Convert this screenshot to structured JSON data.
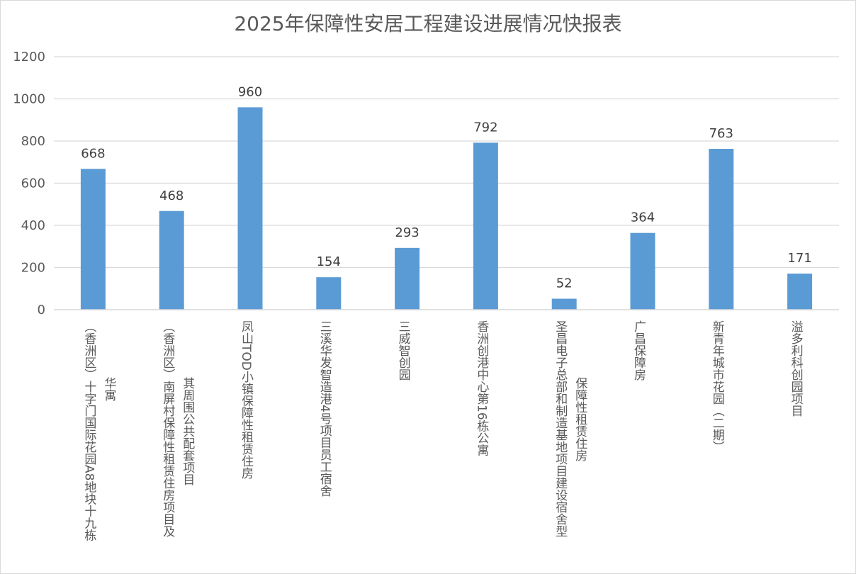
{
  "chart_data": {
    "type": "bar",
    "title": "2025年保障性安居工程建设进展情况快报表",
    "ylim": [
      0,
      1200
    ],
    "yticks": [
      0,
      200,
      400,
      600,
      800,
      1000,
      1200
    ],
    "grid": true,
    "legend": "none",
    "bar_color": "#5b9bd5",
    "categories": [
      "（香洲区）十字门国际花园A8地块十九栋华寓",
      "（香洲区）南屏村保障性租赁住房项目及其周围公共配套项目",
      "凤山TOD小镇保障性租赁住房",
      "三溪华发智造港4号项目员工宿舍",
      "三威智创园",
      "香洲创港中心第16栋公寓",
      "圣昌电子总部和制造基地项目建设宿舍型保障性租赁住房",
      "广昌保障房",
      "新青年城市花园（二期）",
      "溢多利科创园项目"
    ],
    "category_lines": [
      [
        "（香洲区）十字门国际花园A8地块十九栋",
        "华寓"
      ],
      [
        "（香洲区）南屏村保障性租赁住房项目及",
        "其周围公共配套项目"
      ],
      [
        "凤山TOD小镇保障性租赁住房"
      ],
      [
        "三溪华发智造港4号项目员工宿舍"
      ],
      [
        "三威智创园"
      ],
      [
        "香洲创港中心第16栋公寓"
      ],
      [
        "圣昌电子总部和制造基地项目建设宿舍型",
        "保障性租赁住房"
      ],
      [
        "广昌保障房"
      ],
      [
        "新青年城市花园（二期）"
      ],
      [
        "溢多利科创园项目"
      ]
    ],
    "values": [
      668,
      468,
      960,
      154,
      293,
      792,
      52,
      364,
      763,
      171
    ]
  }
}
